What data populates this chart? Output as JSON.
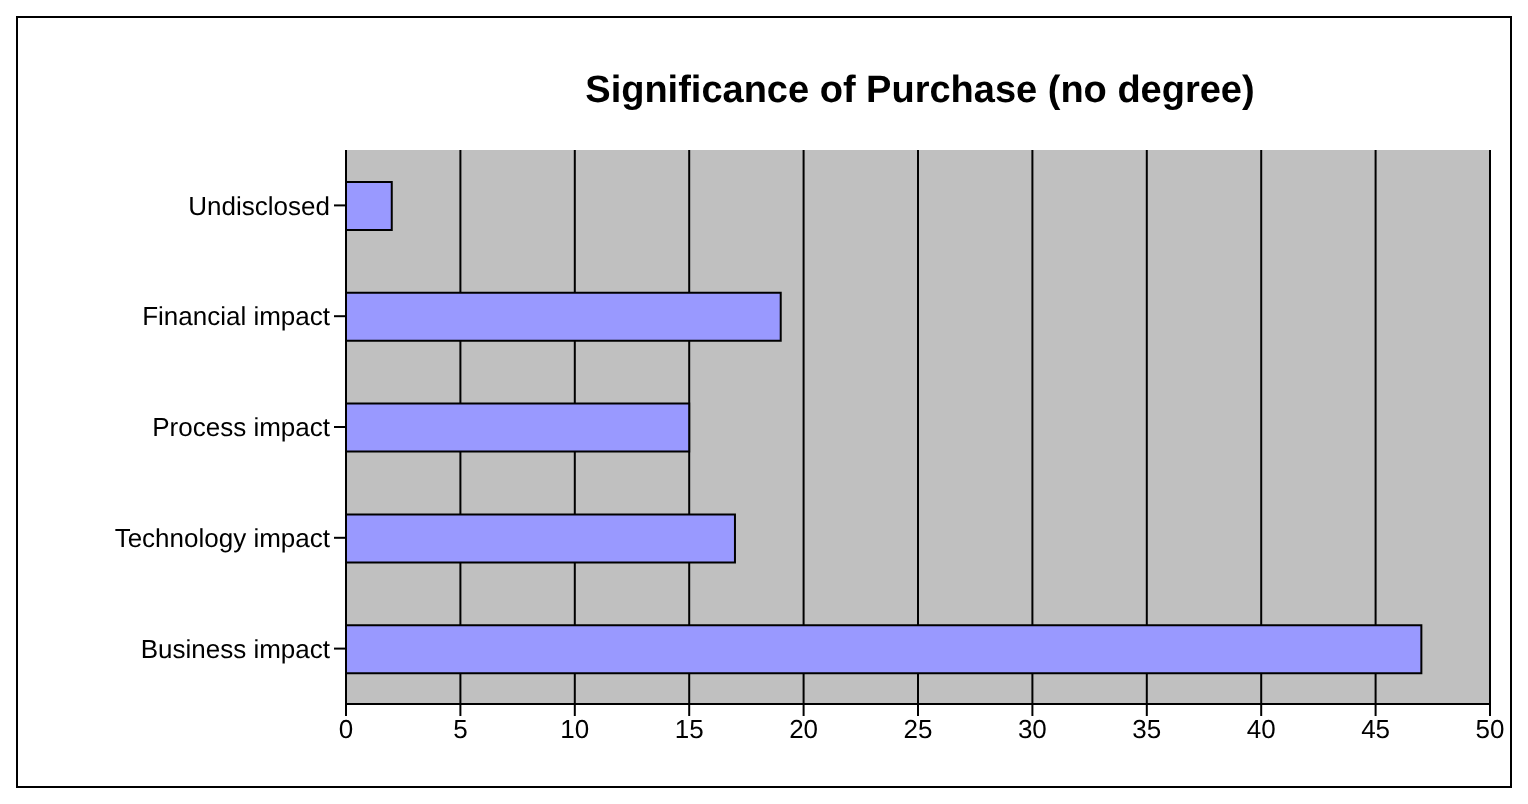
{
  "chart_data": {
    "type": "bar",
    "orientation": "horizontal",
    "title": "Significance of Purchase (no degree)",
    "categories": [
      "Undisclosed",
      "Financial impact",
      "Process impact",
      "Technology impact",
      "Business impact"
    ],
    "values": [
      2,
      19,
      15,
      17,
      47
    ],
    "color": "#9999ff",
    "xlim": [
      0,
      50
    ],
    "xticks": [
      0,
      5,
      10,
      15,
      20,
      25,
      30,
      35,
      40,
      45,
      50
    ],
    "grid": "x"
  }
}
